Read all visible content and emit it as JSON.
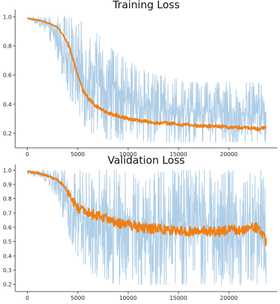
{
  "chart_data": [
    {
      "type": "line",
      "title": "Training Loss",
      "xlabel": "",
      "ylabel": "",
      "xlim": [
        -1200,
        24800
      ],
      "ylim": [
        0.1,
        1.05
      ],
      "x_ticks": [
        0,
        5000,
        10000,
        15000,
        20000
      ],
      "y_ticks": [
        0.2,
        0.4,
        0.6,
        0.8,
        1.0
      ],
      "x_tick_labels": [
        "0",
        "5000",
        "10000",
        "15000",
        "20000"
      ],
      "y_tick_labels": [
        "0.2",
        "0.4",
        "0.6",
        "0.8",
        "1.0"
      ],
      "grid": false,
      "series": [
        {
          "role": "raw",
          "color": "#aecde6",
          "x": [
            0,
            1000,
            2000,
            3000,
            4000,
            5000,
            6000,
            7000,
            8000,
            9000,
            10000,
            11000,
            12000,
            13000,
            14000,
            15000,
            16000,
            17000,
            18000,
            19000,
            20000,
            21000,
            22000,
            23000,
            23700
          ],
          "y_low": [
            0.98,
            0.95,
            0.88,
            0.72,
            0.45,
            0.25,
            0.2,
            0.18,
            0.16,
            0.15,
            0.15,
            0.15,
            0.14,
            0.14,
            0.14,
            0.14,
            0.14,
            0.14,
            0.14,
            0.14,
            0.14,
            0.14,
            0.14,
            0.14,
            0.14
          ],
          "y_high": [
            1.0,
            1.0,
            1.0,
            1.0,
            1.0,
            0.98,
            0.95,
            0.88,
            0.8,
            0.75,
            0.7,
            0.65,
            0.62,
            0.6,
            0.58,
            0.57,
            0.55,
            0.55,
            0.55,
            0.55,
            0.55,
            0.55,
            0.55,
            0.55,
            0.55
          ]
        },
        {
          "role": "smoothed",
          "color": "#f07f12",
          "x": [
            0,
            1000,
            2000,
            3000,
            3500,
            4000,
            4500,
            5000,
            5500,
            6000,
            7000,
            8000,
            9000,
            10000,
            11000,
            12000,
            13000,
            14000,
            15000,
            16000,
            17000,
            18000,
            19000,
            20000,
            21000,
            22000,
            23000,
            23700
          ],
          "y": [
            0.99,
            0.98,
            0.96,
            0.93,
            0.88,
            0.82,
            0.72,
            0.6,
            0.5,
            0.44,
            0.38,
            0.34,
            0.32,
            0.3,
            0.29,
            0.28,
            0.27,
            0.27,
            0.26,
            0.26,
            0.25,
            0.25,
            0.25,
            0.24,
            0.24,
            0.24,
            0.23,
            0.24
          ]
        }
      ]
    },
    {
      "type": "line",
      "title": "Validation Loss",
      "xlabel": "",
      "ylabel": "",
      "xlim": [
        -1200,
        24800
      ],
      "ylim": [
        0.15,
        1.04
      ],
      "x_ticks": [
        0,
        5000,
        10000,
        15000,
        20000
      ],
      "y_ticks": [
        0.2,
        0.3,
        0.4,
        0.5,
        0.6,
        0.7,
        0.8,
        0.9,
        1.0
      ],
      "x_tick_labels": [
        "0",
        "5000",
        "10000",
        "15000",
        "20000"
      ],
      "y_tick_labels": [
        "0.2",
        "0.3",
        "0.4",
        "0.5",
        "0.6",
        "0.7",
        "0.8",
        "0.9",
        "1.0"
      ],
      "grid": false,
      "series": [
        {
          "role": "raw",
          "color": "#aecde6",
          "x": [
            0,
            1000,
            2000,
            3000,
            4000,
            5000,
            6000,
            7000,
            8000,
            9000,
            10000,
            11000,
            12000,
            13000,
            14000,
            15000,
            16000,
            17000,
            18000,
            19000,
            20000,
            21000,
            22000,
            23000,
            23700
          ],
          "y_low": [
            0.97,
            0.95,
            0.9,
            0.8,
            0.55,
            0.4,
            0.3,
            0.25,
            0.22,
            0.2,
            0.2,
            0.2,
            0.2,
            0.2,
            0.2,
            0.2,
            0.2,
            0.2,
            0.2,
            0.2,
            0.2,
            0.2,
            0.2,
            0.2,
            0.2
          ],
          "y_high": [
            1.0,
            1.0,
            1.0,
            1.0,
            1.0,
            1.0,
            1.0,
            1.0,
            1.0,
            1.0,
            1.0,
            1.0,
            1.0,
            1.0,
            1.0,
            1.0,
            1.0,
            1.0,
            1.0,
            1.0,
            1.0,
            1.0,
            1.0,
            1.0,
            1.0
          ]
        },
        {
          "role": "smoothed",
          "color": "#f07f12",
          "x": [
            0,
            1000,
            2000,
            3000,
            3500,
            4000,
            4500,
            5000,
            5500,
            6000,
            7000,
            8000,
            9000,
            10000,
            11000,
            12000,
            13000,
            14000,
            15000,
            16000,
            17000,
            18000,
            19000,
            20000,
            21000,
            22000,
            23000,
            23700
          ],
          "y": [
            0.99,
            0.98,
            0.96,
            0.93,
            0.9,
            0.85,
            0.78,
            0.74,
            0.72,
            0.7,
            0.68,
            0.66,
            0.63,
            0.62,
            0.6,
            0.59,
            0.59,
            0.58,
            0.58,
            0.57,
            0.58,
            0.57,
            0.57,
            0.58,
            0.58,
            0.59,
            0.6,
            0.5
          ]
        }
      ]
    }
  ]
}
